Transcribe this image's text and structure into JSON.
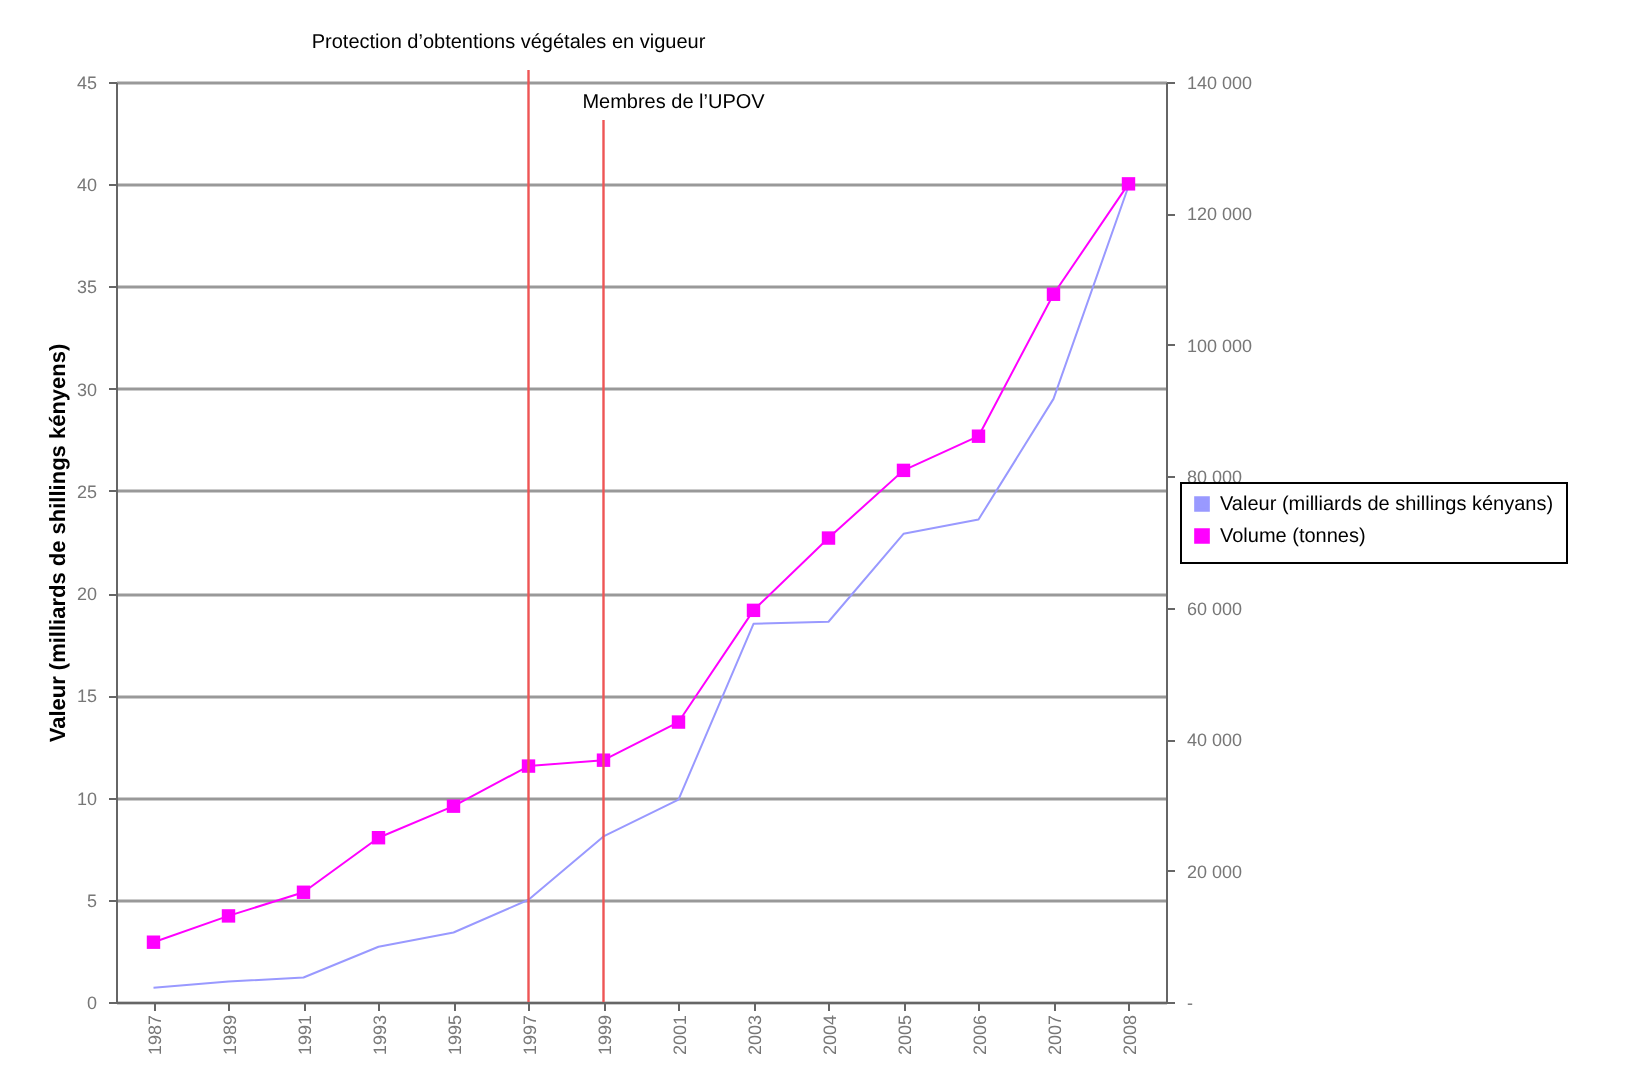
{
  "chart_data": {
    "type": "line",
    "ylabel": "Valeur (milliards de shillings kényens)",
    "categories": [
      "1987",
      "1989",
      "1991",
      "1993",
      "1995",
      "1997",
      "1999",
      "2001",
      "2003",
      "2004",
      "2005",
      "2006",
      "2007",
      "2008"
    ],
    "series": [
      {
        "name": "Valeur (milliards de shillings kényans)",
        "color": "#9999ff",
        "marker": "none",
        "values": [
          0.7,
          1.0,
          1.2,
          2.7,
          3.4,
          5.0,
          8.1,
          9.9,
          18.5,
          18.6,
          22.9,
          23.6,
          29.5,
          39.9
        ]
      },
      {
        "name": "Volume (tonnes)",
        "color": "#ff00ff",
        "marker": "square",
        "axis": "y2",
        "values": [
          9100,
          13100,
          16700,
          25000,
          29800,
          35900,
          36800,
          42600,
          59600,
          70600,
          80900,
          86100,
          107700,
          124500
        ]
      }
    ],
    "ylim": [
      0,
      45
    ],
    "yticks": [
      0,
      5,
      10,
      15,
      20,
      25,
      30,
      35,
      40,
      45
    ],
    "y2lim": [
      0,
      140000
    ],
    "y2ticks": [
      {
        "value": 0,
        "label": "-"
      },
      {
        "value": 20000,
        "label": "20 000"
      },
      {
        "value": 40000,
        "label": "40 000"
      },
      {
        "value": 60000,
        "label": "60 000"
      },
      {
        "value": 80000,
        "label": "80 000"
      },
      {
        "value": 100000,
        "label": "100 000"
      },
      {
        "value": 120000,
        "label": "120 000"
      },
      {
        "value": 140000,
        "label": "140 000"
      }
    ],
    "ref_lines": [
      {
        "axis": "x",
        "value": "1997",
        "label": "Protection d’obtentions végétales en vigueur",
        "color": "#ee5555"
      },
      {
        "axis": "x",
        "value": "1999",
        "label": "Membres de l’UPOV",
        "color": "#ee5555"
      }
    ],
    "grid": "y",
    "legend": "right"
  }
}
